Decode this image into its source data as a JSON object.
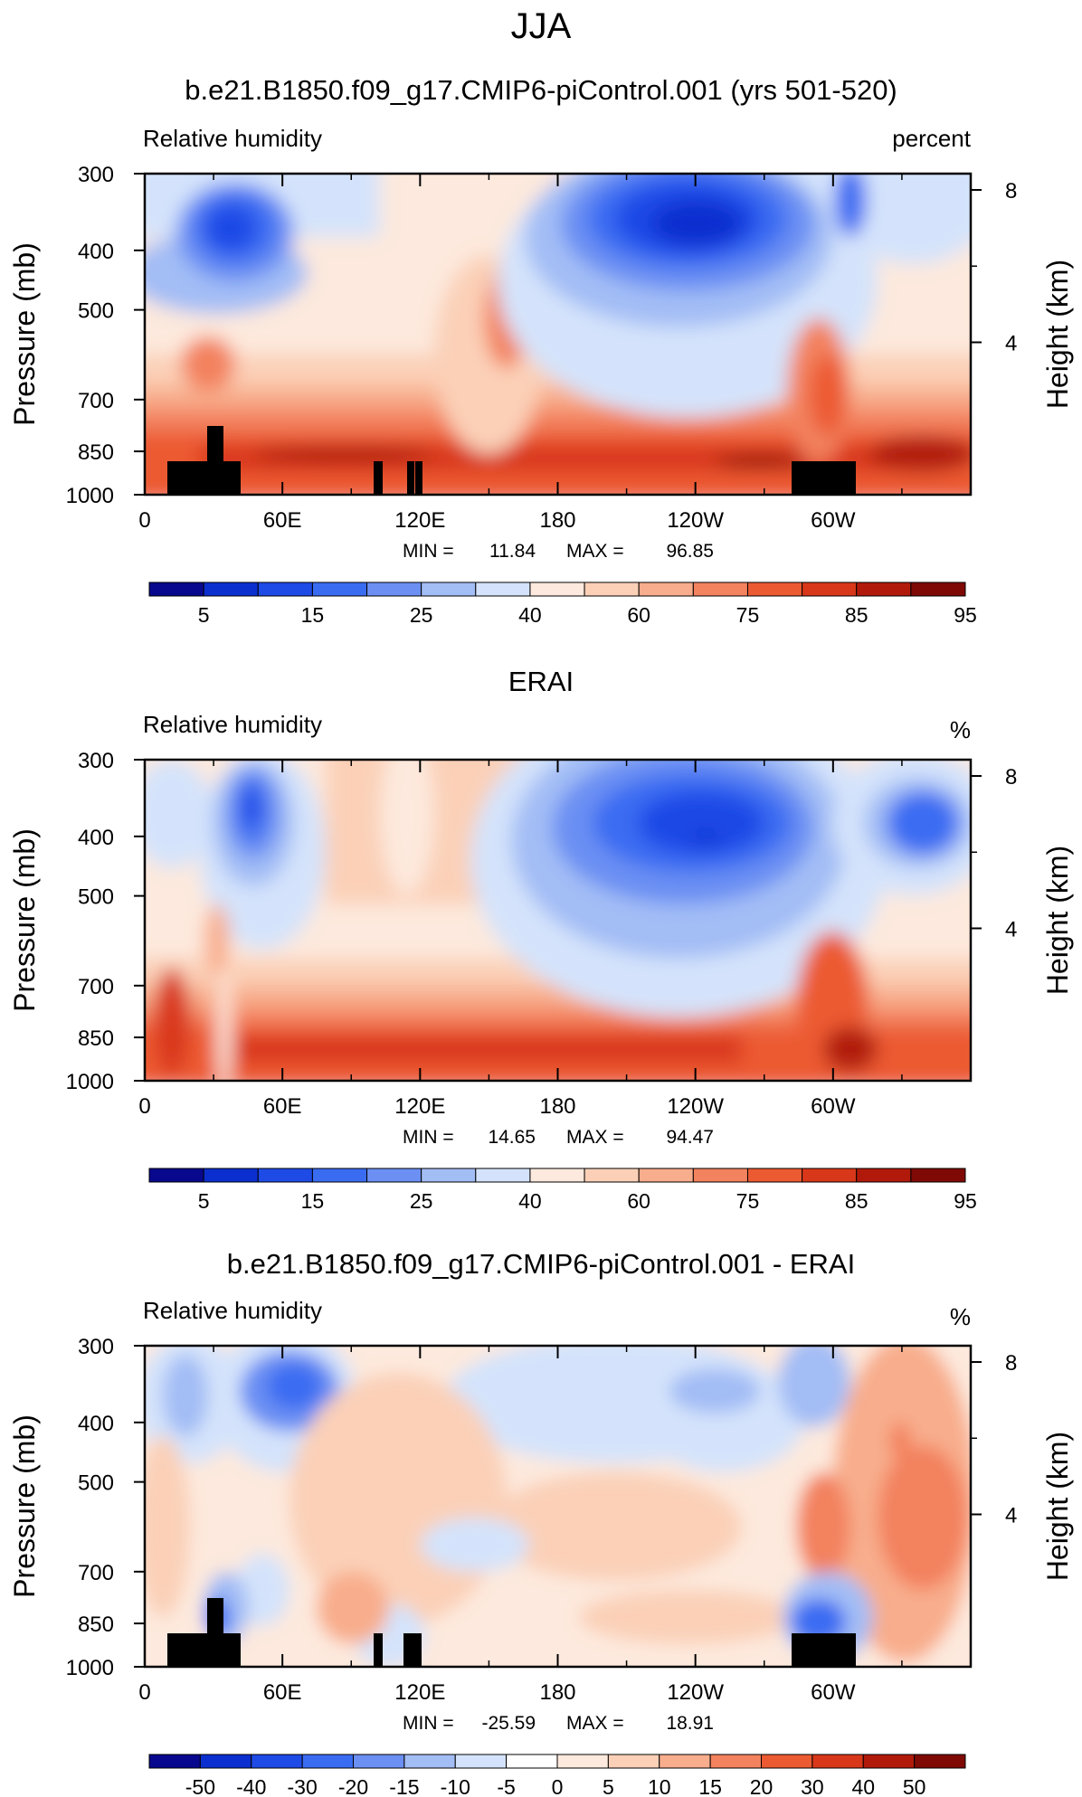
{
  "season": "JJA",
  "colors": {
    "rh_palette": [
      "#08088e",
      "#0b2fcf",
      "#1e4ae6",
      "#3a6cf2",
      "#6b8ff3",
      "#a3bdf5",
      "#d4e3fb",
      "#fde9dd",
      "#fbd0b7",
      "#f8ad8c",
      "#f3825e",
      "#ec5a32",
      "#d9371a",
      "#b11a0b",
      "#7f0a05"
    ],
    "diff_palette": [
      "#08088e",
      "#0b2fcf",
      "#1e4ae6",
      "#3a6cf2",
      "#6b8ff3",
      "#a3bdf5",
      "#d4e3fb",
      "#ffffff",
      "#fde9dd",
      "#fbd0b7",
      "#f8ad8c",
      "#f3825e",
      "#ec5a32",
      "#d9371a",
      "#b11a0b",
      "#7f0a05"
    ],
    "land_mask": "#000000"
  },
  "chart_data": [
    {
      "type": "heatmap",
      "title": "b.e21.B1850.f09_g17.CMIP6-piControl.001 (yrs 501-520)",
      "left_label": "Relative humidity",
      "right_label": "percent",
      "ylabel": "Pressure (mb)",
      "ylabel2": "Height (km)",
      "x_ticks": [
        "0",
        "60E",
        "120E",
        "180",
        "120W",
        "60W"
      ],
      "y_ticks": [
        "300",
        "400",
        "500",
        "700",
        "850",
        "1000"
      ],
      "y2_ticks": [
        "8",
        "4"
      ],
      "stats": {
        "min_label": "MIN =",
        "min": "11.84",
        "max_label": "MAX =",
        "max": "96.85"
      },
      "colorbar_labels": [
        "5",
        "15",
        "25",
        "40",
        "60",
        "75",
        "85",
        "95"
      ],
      "xlim": [
        0,
        360
      ],
      "ylim": [
        1000,
        300
      ],
      "land_mask_longitudes": [
        [
          10,
          42
        ],
        [
          100,
          104
        ],
        [
          114,
          117
        ],
        [
          118,
          121
        ],
        [
          282,
          310
        ]
      ]
    },
    {
      "type": "heatmap",
      "title": "ERAI",
      "left_label": "Relative humidity",
      "right_label": "%",
      "ylabel": "Pressure (mb)",
      "ylabel2": "Height (km)",
      "x_ticks": [
        "0",
        "60E",
        "120E",
        "180",
        "120W",
        "60W"
      ],
      "y_ticks": [
        "300",
        "400",
        "500",
        "700",
        "850",
        "1000"
      ],
      "y2_ticks": [
        "8",
        "4"
      ],
      "stats": {
        "min_label": "MIN =",
        "min": "14.65",
        "max_label": "MAX =",
        "max": "94.47"
      },
      "colorbar_labels": [
        "5",
        "15",
        "25",
        "40",
        "60",
        "75",
        "85",
        "95"
      ],
      "xlim": [
        0,
        360
      ],
      "ylim": [
        1000,
        300
      ]
    },
    {
      "type": "heatmap",
      "title": "b.e21.B1850.f09_g17.CMIP6-piControl.001 - ERAI",
      "left_label": "Relative humidity",
      "right_label": "%",
      "ylabel": "Pressure (mb)",
      "ylabel2": "Height (km)",
      "x_ticks": [
        "0",
        "60E",
        "120E",
        "180",
        "120W",
        "60W"
      ],
      "y_ticks": [
        "300",
        "400",
        "500",
        "700",
        "850",
        "1000"
      ],
      "y2_ticks": [
        "8",
        "4"
      ],
      "stats": {
        "min_label": "MIN =",
        "min": "-25.59",
        "max_label": "MAX =",
        "max": "18.91"
      },
      "colorbar_labels": [
        "-50",
        "-40",
        "-30",
        "-20",
        "-15",
        "-10",
        "-5",
        "0",
        "5",
        "10",
        "15",
        "20",
        "30",
        "40",
        "50"
      ],
      "xlim": [
        0,
        360
      ],
      "ylim": [
        1000,
        300
      ],
      "land_mask_longitudes": [
        [
          10,
          42
        ],
        [
          100,
          104
        ],
        [
          114,
          121
        ],
        [
          282,
          310
        ]
      ]
    }
  ]
}
